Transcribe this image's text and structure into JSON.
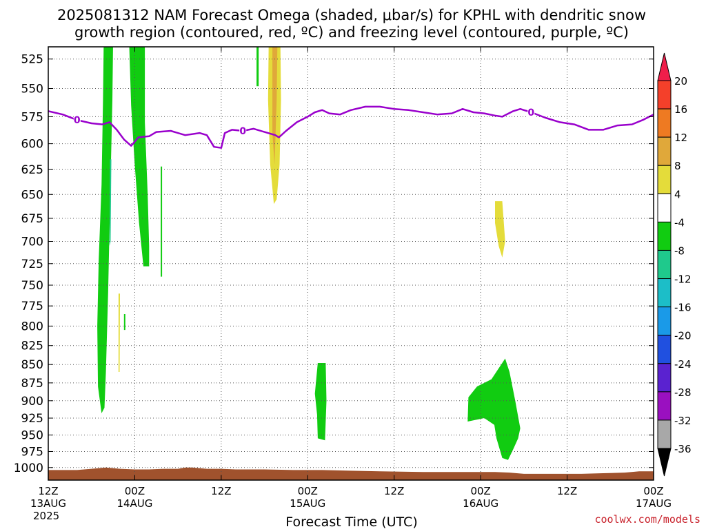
{
  "title": {
    "line1": "2025081312 NAM Forecast Omega (shaded, μbar/s) for KPHL with dendritic snow",
    "line2": "growth region (contoured, red, ºC) and freezing level (contoured, purple, ºC)"
  },
  "credit": "coolwx.com/models",
  "chart_data": {
    "type": "time-height",
    "xlabel": "Forecast Time (UTC)",
    "ylabel": "",
    "x_ticks": [
      {
        "hour": 0,
        "label1": "12Z",
        "label2": "13AUG",
        "label3": "2025"
      },
      {
        "hour": 12,
        "label1": "00Z",
        "label2": "14AUG",
        "label3": ""
      },
      {
        "hour": 24,
        "label1": "12Z",
        "label2": "",
        "label3": ""
      },
      {
        "hour": 36,
        "label1": "00Z",
        "label2": "15AUG",
        "label3": ""
      },
      {
        "hour": 48,
        "label1": "12Z",
        "label2": "",
        "label3": ""
      },
      {
        "hour": 60,
        "label1": "00Z",
        "label2": "16AUG",
        "label3": ""
      },
      {
        "hour": 72,
        "label1": "12Z",
        "label2": "",
        "label3": ""
      },
      {
        "hour": 84,
        "label1": "00Z",
        "label2": "17AUG",
        "label3": ""
      }
    ],
    "xlim": [
      0,
      84
    ],
    "y_ticks": [
      525,
      550,
      575,
      600,
      625,
      650,
      675,
      700,
      725,
      750,
      775,
      800,
      825,
      850,
      875,
      900,
      925,
      950,
      975,
      1000
    ],
    "ylim": [
      515,
      1020
    ],
    "y_scale": "log",
    "grid": true,
    "colorbar": {
      "tick_labels": [
        "20",
        "16",
        "12",
        "8",
        "4",
        "-4",
        "-8",
        "-12",
        "-16",
        "-20",
        "-24",
        "-28",
        "-32",
        "-36"
      ],
      "bins": [
        {
          "color": "#ef1e4a",
          "label": ">20"
        },
        {
          "color": "#f4402a",
          "label": "16 to 20"
        },
        {
          "color": "#ee7a22",
          "label": "12 to 16"
        },
        {
          "color": "#e0a83a",
          "label": "8 to 12"
        },
        {
          "color": "#e4dc3a",
          "label": "4 to 8"
        },
        {
          "color": "#ffffff",
          "label": "-4 to 4"
        },
        {
          "color": "#11cc11",
          "label": "-8 to -4"
        },
        {
          "color": "#1fc98c",
          "label": "-12 to -8"
        },
        {
          "color": "#1cbec8",
          "label": "-16 to -12"
        },
        {
          "color": "#1a9ae8",
          "label": "-20 to -16"
        },
        {
          "color": "#2050e0",
          "label": "-24 to -20"
        },
        {
          "color": "#5a22d0",
          "label": "-28 to -24"
        },
        {
          "color": "#9a10c0",
          "label": "-32 to -28"
        },
        {
          "color": "#a8a8a8",
          "label": "-36 to -32"
        },
        {
          "color": "#000000",
          "label": "<-36"
        }
      ]
    },
    "freezing_level": {
      "color": "#9900cc",
      "contour_label": "0",
      "label_at_hours": [
        4,
        27,
        67
      ],
      "points": [
        [
          0,
          570
        ],
        [
          2,
          573
        ],
        [
          4,
          578
        ],
        [
          6,
          581
        ],
        [
          7.5,
          582
        ],
        [
          8.5,
          580
        ],
        [
          9.5,
          587
        ],
        [
          10.5,
          596
        ],
        [
          11.5,
          602
        ],
        [
          12.5,
          594
        ],
        [
          14,
          593
        ],
        [
          15,
          589
        ],
        [
          17,
          588
        ],
        [
          19,
          592
        ],
        [
          21,
          590
        ],
        [
          22,
          592
        ],
        [
          23,
          603
        ],
        [
          24,
          604
        ],
        [
          24.5,
          590
        ],
        [
          25.5,
          587
        ],
        [
          27,
          588
        ],
        [
          28.5,
          586
        ],
        [
          30,
          589
        ],
        [
          31.5,
          592
        ],
        [
          32,
          594
        ],
        [
          33,
          588
        ],
        [
          34.5,
          580
        ],
        [
          36,
          575
        ],
        [
          37,
          571
        ],
        [
          38,
          569
        ],
        [
          39,
          572
        ],
        [
          40.5,
          573
        ],
        [
          42,
          569
        ],
        [
          44,
          566
        ],
        [
          46,
          566
        ],
        [
          48,
          568
        ],
        [
          50,
          569
        ],
        [
          52,
          571
        ],
        [
          54,
          573
        ],
        [
          56,
          572
        ],
        [
          57.5,
          568
        ],
        [
          59,
          571
        ],
        [
          60.5,
          572
        ],
        [
          62,
          574
        ],
        [
          63,
          575
        ],
        [
          64.5,
          570
        ],
        [
          65.5,
          568
        ],
        [
          67,
          571
        ],
        [
          69,
          576
        ],
        [
          71,
          580
        ],
        [
          73,
          582
        ],
        [
          75,
          587
        ],
        [
          77,
          587
        ],
        [
          79,
          583
        ],
        [
          81,
          582
        ],
        [
          82.5,
          578
        ],
        [
          84,
          573
        ]
      ]
    },
    "omega_regions": [
      {
        "color": "#11cc11",
        "points": [
          [
            7.7,
            508
          ],
          [
            9,
            508
          ],
          [
            8.9,
            560
          ],
          [
            8.6,
            650
          ],
          [
            8.3,
            760
          ],
          [
            8.0,
            860
          ],
          [
            7.8,
            910
          ],
          [
            7.4,
            918
          ],
          [
            6.9,
            880
          ],
          [
            6.8,
            800
          ],
          [
            7.0,
            720
          ],
          [
            7.4,
            640
          ],
          [
            7.6,
            560
          ]
        ]
      },
      {
        "color": "#1fc98c",
        "points": [
          [
            8.55,
            615
          ],
          [
            8.75,
            615
          ],
          [
            8.65,
            700
          ],
          [
            8.5,
            705
          ]
        ]
      },
      {
        "color": "#11cc11",
        "points": [
          [
            11.2,
            508
          ],
          [
            13.4,
            508
          ],
          [
            13.4,
            580
          ],
          [
            13.8,
            650
          ],
          [
            14.0,
            705
          ],
          [
            14.0,
            728
          ],
          [
            13.2,
            728
          ],
          [
            12.6,
            680
          ],
          [
            12.0,
            620
          ],
          [
            11.5,
            565
          ]
        ]
      },
      {
        "color": "#11cc11",
        "points": [
          [
            15.6,
            622
          ],
          [
            15.8,
            622
          ],
          [
            15.8,
            740
          ],
          [
            15.6,
            740
          ]
        ]
      },
      {
        "color": "#11cc11",
        "points": [
          [
            28.9,
            515
          ],
          [
            29.2,
            515
          ],
          [
            29.2,
            548
          ],
          [
            28.9,
            548
          ]
        ]
      },
      {
        "color": "#11cc11",
        "points": [
          [
            10.5,
            785
          ],
          [
            10.7,
            785
          ],
          [
            10.7,
            805
          ],
          [
            10.5,
            805
          ]
        ]
      },
      {
        "color": "#e4dc3a",
        "points": [
          [
            9.75,
            760
          ],
          [
            9.95,
            760
          ],
          [
            9.9,
            860
          ],
          [
            9.75,
            860
          ]
        ]
      },
      {
        "color": "#e4dc3a",
        "points": [
          [
            30.6,
            508
          ],
          [
            32.2,
            508
          ],
          [
            32.3,
            560
          ],
          [
            32.1,
            620
          ],
          [
            31.7,
            655
          ],
          [
            31.3,
            660
          ],
          [
            30.8,
            620
          ],
          [
            30.5,
            560
          ]
        ]
      },
      {
        "color": "#e0a83a",
        "points": [
          [
            31.1,
            510
          ],
          [
            31.8,
            510
          ],
          [
            31.7,
            560
          ],
          [
            31.4,
            620
          ],
          [
            31.1,
            590
          ]
        ]
      },
      {
        "color": "#e4dc3a",
        "points": [
          [
            62.0,
            657
          ],
          [
            63.0,
            657
          ],
          [
            63.4,
            700
          ],
          [
            63.0,
            718
          ],
          [
            62.5,
            705
          ],
          [
            62.0,
            680
          ]
        ]
      },
      {
        "color": "#11cc11",
        "points": [
          [
            37.4,
            848
          ],
          [
            38.5,
            848
          ],
          [
            38.6,
            900
          ],
          [
            38.4,
            958
          ],
          [
            37.4,
            955
          ],
          [
            37.3,
            920
          ],
          [
            37.0,
            890
          ]
        ]
      },
      {
        "color": "#11cc11",
        "points": [
          [
            63.4,
            842
          ],
          [
            64.0,
            860
          ],
          [
            64.8,
            900
          ],
          [
            65.5,
            940
          ],
          [
            65.2,
            955
          ],
          [
            64.5,
            972
          ],
          [
            63.8,
            988
          ],
          [
            63.0,
            985
          ],
          [
            62.2,
            955
          ],
          [
            61.9,
            935
          ],
          [
            60.5,
            925
          ],
          [
            58.2,
            930
          ],
          [
            58.3,
            895
          ],
          [
            59.5,
            880
          ],
          [
            61.5,
            870
          ]
        ]
      }
    ],
    "terrain": {
      "color": "#a0522d",
      "bottom_hPa": 1020,
      "points": [
        [
          0,
          1004
        ],
        [
          2,
          1004
        ],
        [
          4,
          1004
        ],
        [
          6,
          1002
        ],
        [
          8,
          1000
        ],
        [
          10,
          1002
        ],
        [
          12,
          1003
        ],
        [
          14,
          1003
        ],
        [
          16,
          1002
        ],
        [
          18,
          1002
        ],
        [
          19,
          1000
        ],
        [
          20,
          1000
        ],
        [
          22,
          1002
        ],
        [
          24,
          1002
        ],
        [
          26,
          1003
        ],
        [
          30,
          1003
        ],
        [
          34,
          1004
        ],
        [
          38,
          1004
        ],
        [
          42,
          1005
        ],
        [
          46,
          1006
        ],
        [
          52,
          1007
        ],
        [
          56,
          1007
        ],
        [
          60,
          1007
        ],
        [
          62,
          1007
        ],
        [
          64,
          1008
        ],
        [
          66,
          1010
        ],
        [
          70,
          1010
        ],
        [
          74,
          1010
        ],
        [
          77,
          1009
        ],
        [
          80,
          1008
        ],
        [
          82,
          1006
        ],
        [
          84,
          1006
        ]
      ]
    }
  }
}
